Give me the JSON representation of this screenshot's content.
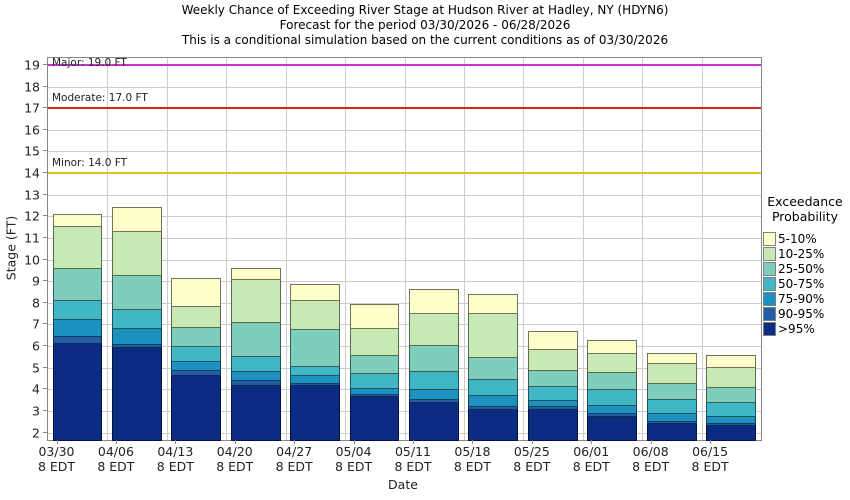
{
  "chart_data": {
    "type": "bar",
    "stacked": true,
    "title": "Weekly Chance of Exceeding River Stage at Hudson River at Hadley, NY (HDYN6)",
    "subtitle": "Forecast for the period 03/30/2026 - 06/28/2026",
    "note": "This is a conditional simulation based on the current conditions as of 03/30/2026",
    "xlabel": "Date",
    "ylabel": "Stage (FT)",
    "ylim": [
      1.66,
      19.32
    ],
    "yticks": [
      2,
      3,
      4,
      5,
      6,
      7,
      8,
      9,
      10,
      11,
      12,
      13,
      14,
      15,
      16,
      17,
      18,
      19
    ],
    "grid": true,
    "categories": [
      "03/30",
      "04/06",
      "04/13",
      "04/20",
      "04/27",
      "05/04",
      "05/11",
      "05/18",
      "05/25",
      "06/01",
      "06/08",
      "06/15"
    ],
    "category_sublabel": "8 EDT",
    "baseline": 1.66,
    "series_note": "values are cumulative stack-top stages in FT, listed bottom segment first",
    "series": [
      {
        "name": ">95%",
        "color": "#0C2C84",
        "tops": [
          6.15,
          5.95,
          4.65,
          4.2,
          4.2,
          3.7,
          3.4,
          3.1,
          3.1,
          2.75,
          2.45,
          2.35
        ]
      },
      {
        "name": "90-95%",
        "color": "#225EA8",
        "tops": [
          6.45,
          6.1,
          4.9,
          4.45,
          4.3,
          3.8,
          3.55,
          3.25,
          3.25,
          2.9,
          2.55,
          2.45
        ]
      },
      {
        "name": "75-90%",
        "color": "#1D91C0",
        "tops": [
          7.25,
          6.85,
          5.3,
          4.85,
          4.65,
          4.05,
          4.0,
          3.75,
          3.5,
          3.3,
          2.9,
          2.75
        ]
      },
      {
        "name": "50-75%",
        "color": "#41B6C4",
        "tops": [
          8.15,
          7.7,
          6.0,
          5.55,
          5.1,
          4.75,
          4.85,
          4.5,
          4.15,
          4.0,
          3.55,
          3.4
        ]
      },
      {
        "name": "25-50%",
        "color": "#7FCDBB",
        "tops": [
          9.6,
          9.3,
          6.9,
          7.1,
          6.8,
          5.6,
          6.05,
          5.5,
          4.9,
          4.8,
          4.3,
          4.1
        ]
      },
      {
        "name": "10-25%",
        "color": "#C7E9B4",
        "tops": [
          11.55,
          11.3,
          7.85,
          9.1,
          8.15,
          6.85,
          7.55,
          7.55,
          5.85,
          5.7,
          5.2,
          5.05
        ]
      },
      {
        "name": "5-10%",
        "color": "#FFFFCC",
        "tops": [
          12.1,
          12.45,
          9.15,
          9.6,
          8.85,
          7.95,
          8.65,
          8.4,
          6.7,
          6.3,
          5.7,
          5.6
        ]
      }
    ],
    "thresholds": [
      {
        "name": "major",
        "label": "Major: 19.0 FT",
        "stage": 19.0,
        "color": "#CC33CC"
      },
      {
        "name": "moderate",
        "label": "Moderate: 17.0 FT",
        "stage": 17.0,
        "color": "#DD2222"
      },
      {
        "name": "minor",
        "label": "Minor: 14.0 FT",
        "stage": 14.0,
        "color": "#E6C319"
      }
    ],
    "legend": {
      "title": [
        "Exceedance",
        "Probability"
      ],
      "position": "right",
      "items_top_to_bottom": [
        "5-10%",
        "10-25%",
        "25-50%",
        "50-75%",
        "75-90%",
        "90-95%",
        ">95%"
      ]
    }
  }
}
